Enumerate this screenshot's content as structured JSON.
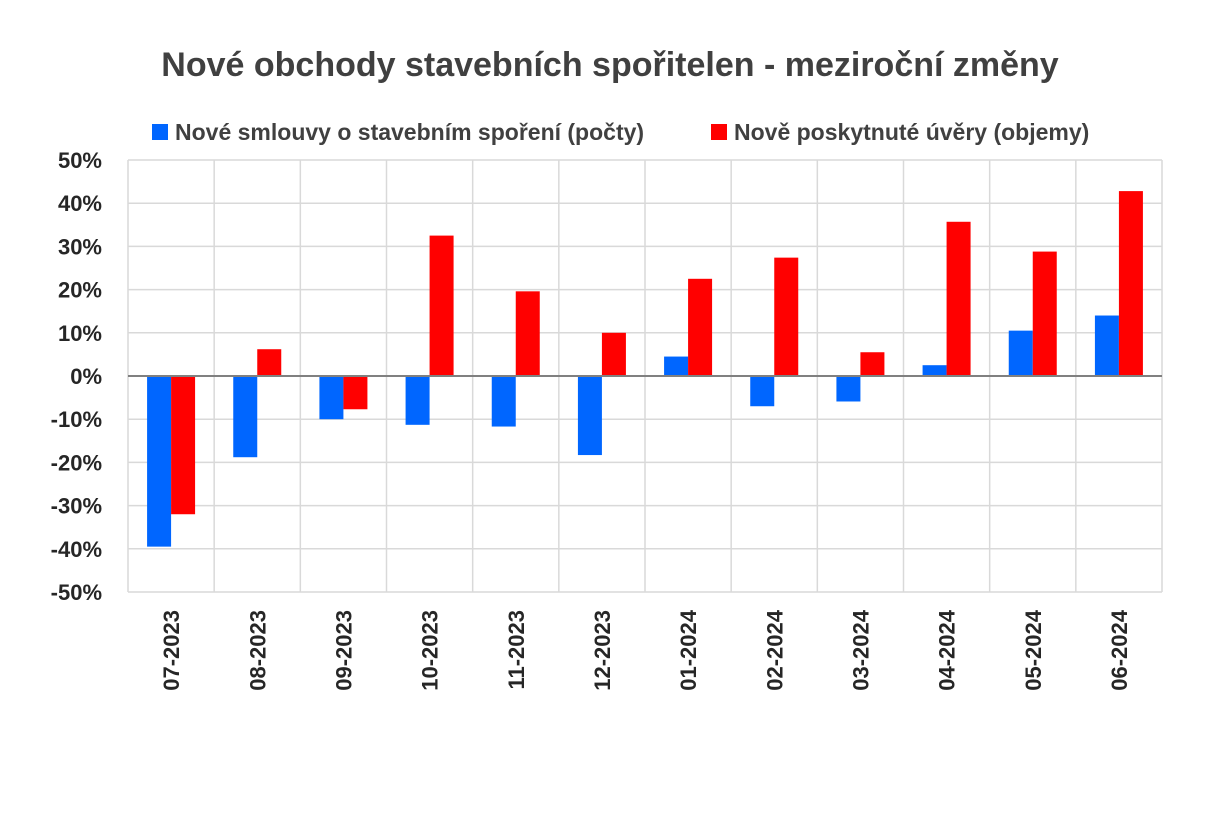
{
  "chart_data": {
    "type": "bar",
    "title": "Nové obchody stavebních spořitelen - meziroční změny",
    "categories": [
      "07-2023",
      "08-2023",
      "09-2023",
      "10-2023",
      "11-2023",
      "12-2023",
      "01-2024",
      "02-2024",
      "03-2024",
      "04-2024",
      "05-2024",
      "06-2024"
    ],
    "series": [
      {
        "name": "Nové smlouvy o stavebním spoření (počty)",
        "color": "#0066ff",
        "values": [
          -39.5,
          -18.8,
          -10.0,
          -11.3,
          -11.7,
          -18.3,
          4.5,
          -7.0,
          -5.9,
          2.5,
          10.5,
          14.0
        ]
      },
      {
        "name": "Nově poskytnuté úvěry (objemy)",
        "color": "#ff0000",
        "values": [
          -32.0,
          6.2,
          -7.7,
          32.5,
          19.6,
          10.0,
          22.5,
          27.4,
          5.5,
          35.7,
          28.8,
          42.8
        ]
      }
    ],
    "y_ticks": [
      "50%",
      "40%",
      "30%",
      "20%",
      "10%",
      "0%",
      "-10%",
      "-20%",
      "-30%",
      "-40%",
      "-50%"
    ],
    "ylim": [
      -50,
      50
    ],
    "ytick_step": 10,
    "grid": true,
    "legend_position": "top"
  }
}
